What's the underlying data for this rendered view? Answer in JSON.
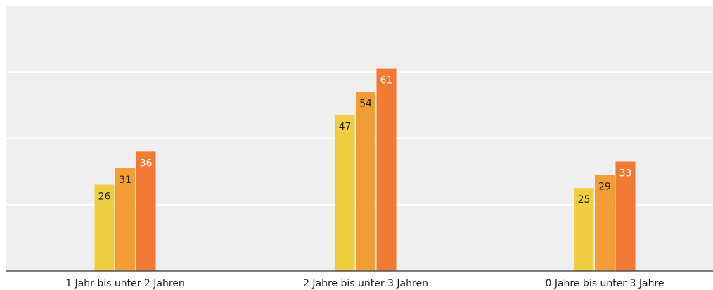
{
  "chart_data": {
    "type": "bar",
    "categories": [
      "1 Jahr bis unter 2 Jahren",
      "2 Jahre bis unter 3 Jahren",
      "0 Jahre bis unter 3 Jahre"
    ],
    "series": [
      {
        "color": "#efcf40",
        "values": [
          26,
          47,
          25
        ]
      },
      {
        "color": "#f39d37",
        "values": [
          31,
          54,
          29
        ]
      },
      {
        "color": "#f07a33",
        "values": [
          36,
          61,
          33
        ]
      }
    ],
    "ylim": [
      0,
      80
    ],
    "yticks": [
      0,
      20,
      40,
      60,
      80
    ],
    "grid": true
  }
}
